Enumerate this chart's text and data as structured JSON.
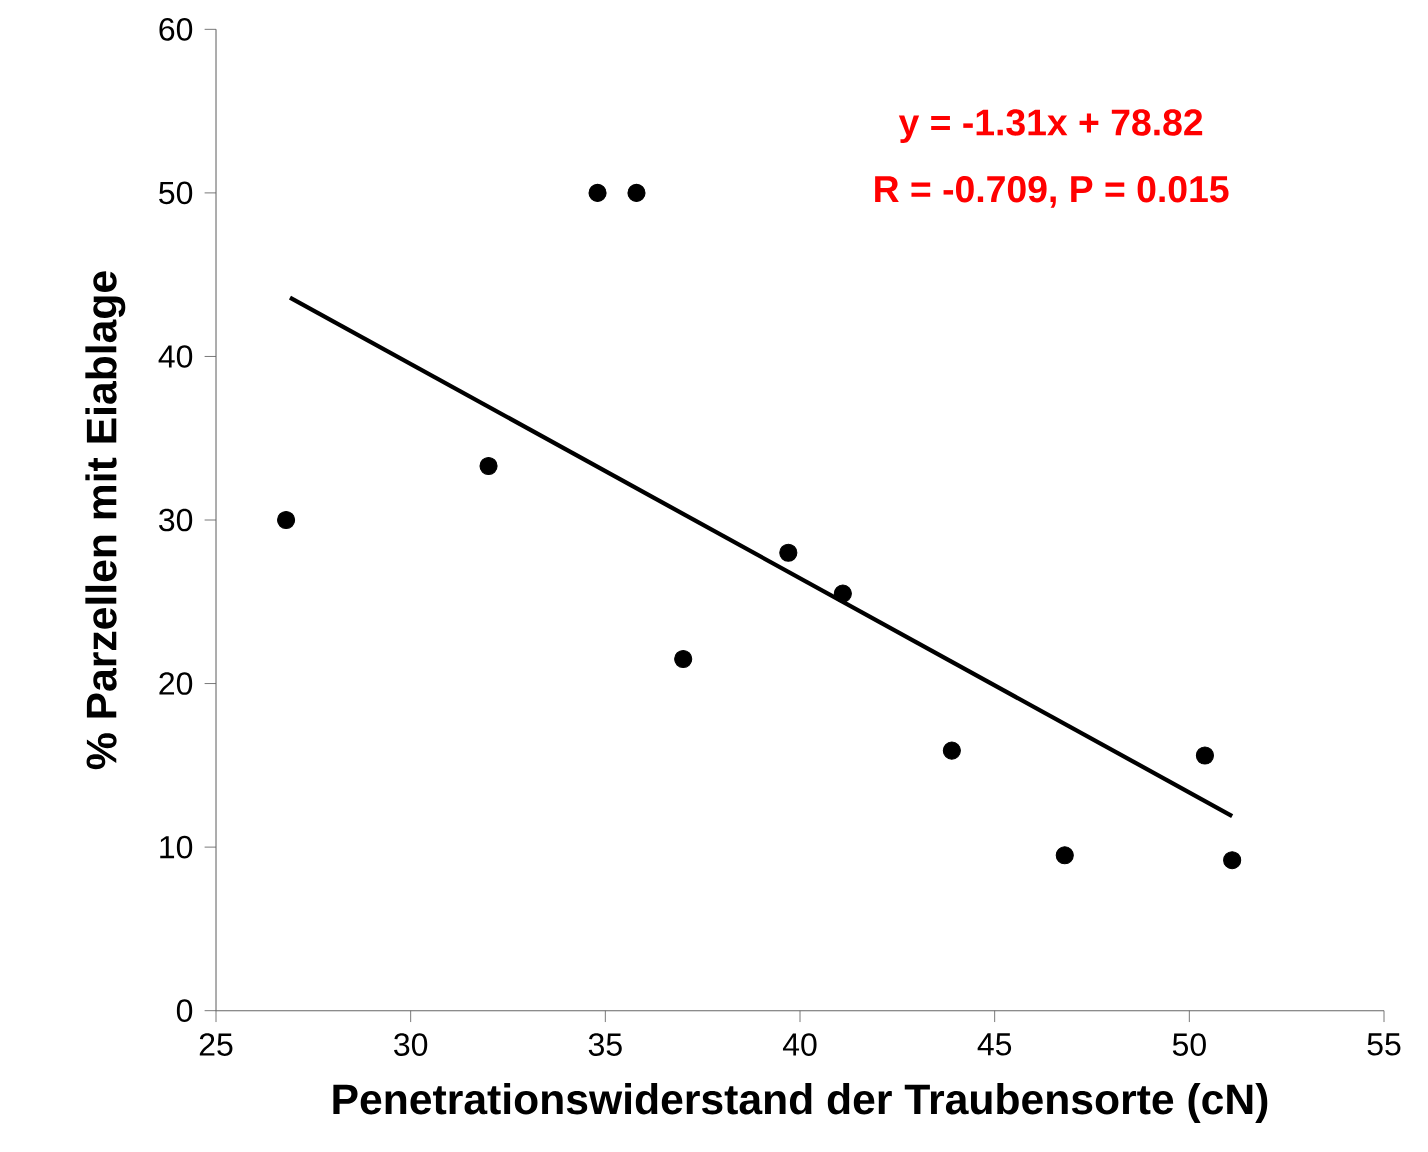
{
  "chart_data": {
    "type": "scatter",
    "xlabel": "Penetrationswiderstand der Traubensorte (cN)",
    "ylabel": "% Parzellen mit Eiablage",
    "xlim": [
      25,
      55
    ],
    "xticks": [
      25,
      30,
      35,
      40,
      45,
      50,
      55
    ],
    "ylim": [
      0,
      60
    ],
    "yticks": [
      0,
      10,
      20,
      30,
      40,
      50,
      60
    ],
    "grid": false,
    "series": [
      {
        "marker": "circle",
        "color": "#000000",
        "x": [
          26.8,
          32.0,
          34.8,
          35.8,
          37.0,
          39.7,
          41.1,
          43.9,
          46.8,
          50.4,
          51.1
        ],
        "values": [
          30.0,
          33.3,
          50.0,
          50.0,
          21.5,
          28.0,
          25.5,
          15.9,
          9.5,
          15.6,
          9.2
        ]
      },
      {
        "type": "line",
        "marker": "none",
        "color": "#000000",
        "x": [
          26.9,
          51.1
        ],
        "values": [
          43.6,
          11.9
        ]
      }
    ],
    "annotations": [
      "y = -1.31x + 78.82",
      "R = -0.709, P = 0.015"
    ]
  }
}
